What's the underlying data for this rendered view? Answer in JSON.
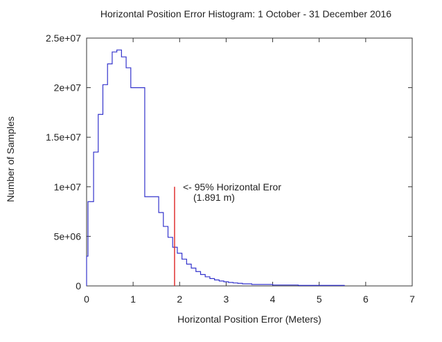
{
  "chart_data": {
    "type": "histogram",
    "title": "Horizontal Position Error Histogram: 1 October - 31 December 2016",
    "xlabel": "Horizontal Position Error (Meters)",
    "ylabel": "Number of Samples",
    "xlim": [
      0,
      7
    ],
    "ylim": [
      0,
      25000000
    ],
    "xticks": [
      "0",
      "1",
      "2",
      "3",
      "4",
      "5",
      "6",
      "7"
    ],
    "yticks": [
      "0",
      "5e+06",
      "1e+07",
      "1.5e+07",
      "2e+07",
      "2.5e+07"
    ],
    "grid": false,
    "line_color": "#3333cc",
    "bins": [
      {
        "x0": 0.0,
        "x1": 0.03,
        "value": 3000000
      },
      {
        "x0": 0.03,
        "x1": 0.15,
        "value": 8500000
      },
      {
        "x0": 0.15,
        "x1": 0.25,
        "value": 13500000
      },
      {
        "x0": 0.25,
        "x1": 0.35,
        "value": 17300000
      },
      {
        "x0": 0.35,
        "x1": 0.45,
        "value": 20300000
      },
      {
        "x0": 0.45,
        "x1": 0.55,
        "value": 22400000
      },
      {
        "x0": 0.55,
        "x1": 0.65,
        "value": 23600000
      },
      {
        "x0": 0.65,
        "x1": 0.75,
        "value": 23800000
      },
      {
        "x0": 0.75,
        "x1": 0.85,
        "value": 23100000
      },
      {
        "x0": 0.85,
        "x1": 0.95,
        "value": 22000000
      },
      {
        "x0": 0.95,
        "x1": 1.25,
        "value": 20000000
      },
      {
        "x0": 1.25,
        "x1": 1.55,
        "value": 9000000
      },
      {
        "x0": 1.55,
        "x1": 1.65,
        "value": 7400000
      },
      {
        "x0": 1.65,
        "x1": 1.75,
        "value": 6000000
      },
      {
        "x0": 1.75,
        "x1": 1.85,
        "value": 4900000
      },
      {
        "x0": 1.85,
        "x1": 1.95,
        "value": 3900000
      },
      {
        "x0": 1.95,
        "x1": 2.05,
        "value": 3300000
      },
      {
        "x0": 2.05,
        "x1": 2.15,
        "value": 2700000
      },
      {
        "x0": 2.15,
        "x1": 2.25,
        "value": 2200000
      },
      {
        "x0": 2.25,
        "x1": 2.35,
        "value": 1800000
      },
      {
        "x0": 2.35,
        "x1": 2.45,
        "value": 1450000
      },
      {
        "x0": 2.45,
        "x1": 2.55,
        "value": 1150000
      },
      {
        "x0": 2.55,
        "x1": 2.65,
        "value": 920000
      },
      {
        "x0": 2.65,
        "x1": 2.75,
        "value": 740000
      },
      {
        "x0": 2.75,
        "x1": 2.85,
        "value": 600000
      },
      {
        "x0": 2.85,
        "x1": 2.95,
        "value": 500000
      },
      {
        "x0": 2.95,
        "x1": 3.05,
        "value": 420000
      },
      {
        "x0": 3.05,
        "x1": 3.15,
        "value": 350000
      },
      {
        "x0": 3.15,
        "x1": 3.25,
        "value": 300000
      },
      {
        "x0": 3.25,
        "x1": 3.35,
        "value": 260000
      },
      {
        "x0": 3.35,
        "x1": 3.55,
        "value": 210000
      },
      {
        "x0": 3.55,
        "x1": 4.0,
        "value": 150000
      },
      {
        "x0": 4.0,
        "x1": 4.55,
        "value": 90000
      },
      {
        "x0": 4.55,
        "x1": 5.55,
        "value": 50000
      }
    ],
    "marker": {
      "x": 1.891,
      "y_top": 10000000,
      "color": "#e03030",
      "label_line1": "<- 95% Horizontal Eror",
      "label_line2": "(1.891 m)"
    }
  }
}
